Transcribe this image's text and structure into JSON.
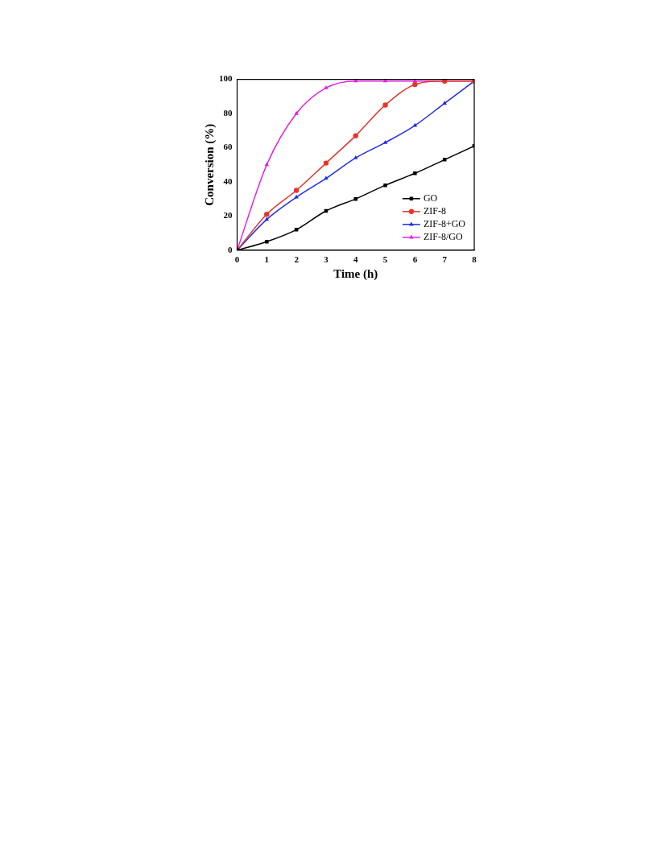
{
  "chart_data": {
    "type": "line",
    "xlabel": "Time (h)",
    "ylabel": "Conversion (%)",
    "x": [
      0,
      1,
      2,
      3,
      4,
      5,
      6,
      7,
      8
    ],
    "series": [
      {
        "name": "GO",
        "color": "#000000",
        "marker": "square",
        "values": [
          0,
          5,
          12,
          23,
          30,
          38,
          45,
          53,
          61
        ]
      },
      {
        "name": "ZIF-8",
        "color": "#e8332a",
        "marker": "circle",
        "values": [
          0,
          21,
          35,
          51,
          67,
          85,
          97,
          99,
          99
        ]
      },
      {
        "name": "ZIF-8+GO",
        "color": "#1f2ee6",
        "marker": "triangle",
        "values": [
          0,
          18,
          31,
          42,
          54,
          63,
          73,
          86,
          99
        ]
      },
      {
        "name": "ZIF-8/GO",
        "color": "#e61ee6",
        "marker": "triangle",
        "values": [
          0,
          50,
          80,
          95,
          99,
          99,
          99,
          99,
          99
        ]
      }
    ],
    "xlim": [
      0,
      8
    ],
    "xticks": [
      0,
      1,
      2,
      3,
      4,
      5,
      6,
      7,
      8
    ],
    "ylim": [
      0,
      100
    ],
    "yticks": [
      0,
      20,
      40,
      60,
      80,
      100
    ],
    "grid": false,
    "legend": "bottom right",
    "line_style": "solid"
  }
}
